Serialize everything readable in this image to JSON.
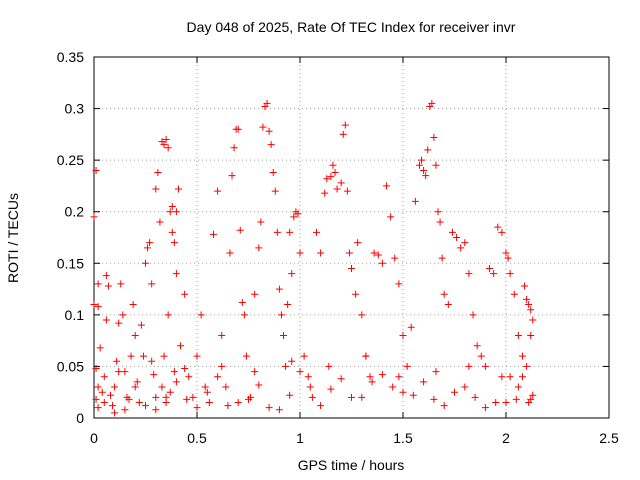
{
  "chart_data": {
    "type": "scatter",
    "title": "Day 048 of 2025, Rate Of TEC Index for receiver invr",
    "xlabel": "GPS time / hours",
    "ylabel": "ROTI / TECUs",
    "xlim": [
      0,
      2.5
    ],
    "ylim": [
      0,
      0.35
    ],
    "x_ticks": [
      0,
      0.5,
      1,
      1.5,
      2,
      2.5
    ],
    "x_tick_labels": [
      "0",
      "0.5",
      "1",
      "1.5",
      "2",
      "2.5"
    ],
    "y_ticks": [
      0,
      0.05,
      0.1,
      0.15,
      0.2,
      0.25,
      0.3,
      0.35
    ],
    "y_tick_labels": [
      "0",
      "0.05",
      "0.1",
      "0.15",
      "0.2",
      "0.25",
      "0.3",
      "0.35"
    ],
    "grid": true,
    "marker": "plus",
    "color": "#ff0000",
    "points": [
      [
        0.0,
        0.195
      ],
      [
        0.01,
        0.24
      ],
      [
        0.02,
        0.13
      ],
      [
        0.0,
        0.11
      ],
      [
        0.02,
        0.108
      ],
      [
        0.03,
        0.068
      ],
      [
        0.01,
        0.048
      ],
      [
        0.02,
        0.03
      ],
      [
        0.01,
        0.018
      ],
      [
        0.02,
        0.01
      ],
      [
        0.04,
        0.025
      ],
      [
        0.05,
        0.04
      ],
      [
        0.06,
        0.095
      ],
      [
        0.06,
        0.138
      ],
      [
        0.07,
        0.128
      ],
      [
        0.08,
        0.022
      ],
      [
        0.09,
        0.012
      ],
      [
        0.1,
        0.03
      ],
      [
        0.11,
        0.055
      ],
      [
        0.12,
        0.092
      ],
      [
        0.13,
        0.13
      ],
      [
        0.14,
        0.1
      ],
      [
        0.15,
        0.045
      ],
      [
        0.16,
        0.02
      ],
      [
        0.17,
        0.018
      ],
      [
        0.18,
        0.06
      ],
      [
        0.19,
        0.11
      ],
      [
        0.2,
        0.08
      ],
      [
        0.21,
        0.035
      ],
      [
        0.22,
        0.015
      ],
      [
        0.23,
        0.09
      ],
      [
        0.24,
        0.06
      ],
      [
        0.25,
        0.15
      ],
      [
        0.26,
        0.165
      ],
      [
        0.27,
        0.17
      ],
      [
        0.28,
        0.13
      ],
      [
        0.29,
        0.042
      ],
      [
        0.3,
        0.02
      ],
      [
        0.3,
        0.222
      ],
      [
        0.31,
        0.238
      ],
      [
        0.32,
        0.19
      ],
      [
        0.33,
        0.268
      ],
      [
        0.34,
        0.265
      ],
      [
        0.35,
        0.27
      ],
      [
        0.36,
        0.262
      ],
      [
        0.37,
        0.2
      ],
      [
        0.38,
        0.205
      ],
      [
        0.39,
        0.17
      ],
      [
        0.4,
        0.14
      ],
      [
        0.41,
        0.222
      ],
      [
        0.4,
        0.2
      ],
      [
        0.38,
        0.18
      ],
      [
        0.36,
        0.1
      ],
      [
        0.34,
        0.06
      ],
      [
        0.33,
        0.03
      ],
      [
        0.35,
        0.015
      ],
      [
        0.37,
        0.025
      ],
      [
        0.39,
        0.045
      ],
      [
        0.42,
        0.07
      ],
      [
        0.44,
        0.12
      ],
      [
        0.46,
        0.04
      ],
      [
        0.48,
        0.02
      ],
      [
        0.5,
        0.06
      ],
      [
        0.52,
        0.1
      ],
      [
        0.54,
        0.03
      ],
      [
        0.56,
        0.015
      ],
      [
        0.58,
        0.178
      ],
      [
        0.6,
        0.22
      ],
      [
        0.62,
        0.08
      ],
      [
        0.64,
        0.03
      ],
      [
        0.66,
        0.16
      ],
      [
        0.67,
        0.235
      ],
      [
        0.68,
        0.262
      ],
      [
        0.69,
        0.28
      ],
      [
        0.7,
        0.28
      ],
      [
        0.71,
        0.182
      ],
      [
        0.72,
        0.112
      ],
      [
        0.73,
        0.1
      ],
      [
        0.74,
        0.06
      ],
      [
        0.76,
        0.02
      ],
      [
        0.78,
        0.12
      ],
      [
        0.8,
        0.165
      ],
      [
        0.81,
        0.19
      ],
      [
        0.82,
        0.282
      ],
      [
        0.83,
        0.302
      ],
      [
        0.84,
        0.305
      ],
      [
        0.85,
        0.278
      ],
      [
        0.86,
        0.265
      ],
      [
        0.87,
        0.238
      ],
      [
        0.88,
        0.22
      ],
      [
        0.89,
        0.18
      ],
      [
        0.9,
        0.125
      ],
      [
        0.91,
        0.1
      ],
      [
        0.92,
        0.08
      ],
      [
        0.93,
        0.05
      ],
      [
        0.95,
        0.18
      ],
      [
        0.97,
        0.195
      ],
      [
        0.98,
        0.2
      ],
      [
        0.99,
        0.198
      ],
      [
        1.0,
        0.16
      ],
      [
        0.96,
        0.14
      ],
      [
        0.94,
        0.11
      ],
      [
        1.02,
        0.06
      ],
      [
        1.04,
        0.04
      ],
      [
        1.06,
        0.02
      ],
      [
        1.08,
        0.18
      ],
      [
        1.1,
        0.16
      ],
      [
        1.12,
        0.218
      ],
      [
        1.13,
        0.232
      ],
      [
        1.15,
        0.234
      ],
      [
        1.16,
        0.245
      ],
      [
        1.17,
        0.238
      ],
      [
        1.18,
        0.222
      ],
      [
        1.2,
        0.228
      ],
      [
        1.21,
        0.275
      ],
      [
        1.22,
        0.284
      ],
      [
        1.23,
        0.22
      ],
      [
        1.24,
        0.16
      ],
      [
        1.25,
        0.145
      ],
      [
        1.27,
        0.12
      ],
      [
        1.28,
        0.17
      ],
      [
        1.3,
        0.1
      ],
      [
        1.32,
        0.06
      ],
      [
        1.34,
        0.04
      ],
      [
        1.36,
        0.16
      ],
      [
        1.38,
        0.158
      ],
      [
        1.4,
        0.15
      ],
      [
        1.42,
        0.225
      ],
      [
        1.44,
        0.195
      ],
      [
        1.46,
        0.155
      ],
      [
        1.48,
        0.13
      ],
      [
        1.5,
        0.08
      ],
      [
        1.52,
        0.05
      ],
      [
        1.54,
        0.088
      ],
      [
        1.56,
        0.21
      ],
      [
        1.58,
        0.245
      ],
      [
        1.59,
        0.25
      ],
      [
        1.6,
        0.24
      ],
      [
        1.61,
        0.235
      ],
      [
        1.62,
        0.26
      ],
      [
        1.63,
        0.302
      ],
      [
        1.64,
        0.305
      ],
      [
        1.65,
        0.272
      ],
      [
        1.66,
        0.245
      ],
      [
        1.67,
        0.2
      ],
      [
        1.68,
        0.19
      ],
      [
        1.69,
        0.155
      ],
      [
        1.7,
        0.12
      ],
      [
        1.72,
        0.11
      ],
      [
        1.74,
        0.18
      ],
      [
        1.76,
        0.175
      ],
      [
        1.78,
        0.165
      ],
      [
        1.8,
        0.17
      ],
      [
        1.82,
        0.14
      ],
      [
        1.84,
        0.1
      ],
      [
        1.86,
        0.07
      ],
      [
        1.88,
        0.06
      ],
      [
        1.9,
        0.05
      ],
      [
        1.92,
        0.145
      ],
      [
        1.94,
        0.14
      ],
      [
        1.96,
        0.185
      ],
      [
        1.98,
        0.18
      ],
      [
        2.0,
        0.16
      ],
      [
        2.01,
        0.155
      ],
      [
        2.02,
        0.14
      ],
      [
        2.04,
        0.12
      ],
      [
        2.06,
        0.08
      ],
      [
        2.08,
        0.06
      ],
      [
        2.09,
        0.128
      ],
      [
        2.1,
        0.115
      ],
      [
        2.11,
        0.11
      ],
      [
        2.12,
        0.105
      ],
      [
        2.13,
        0.095
      ],
      [
        2.12,
        0.08
      ],
      [
        2.1,
        0.05
      ],
      [
        2.08,
        0.04
      ],
      [
        2.06,
        0.03
      ],
      [
        2.13,
        0.022
      ],
      [
        2.12,
        0.018
      ],
      [
        2.11,
        0.015
      ],
      [
        0.05,
        0.015
      ],
      [
        0.15,
        0.008
      ],
      [
        0.25,
        0.012
      ],
      [
        0.35,
        0.02
      ],
      [
        0.45,
        0.018
      ],
      [
        0.55,
        0.025
      ],
      [
        0.65,
        0.012
      ],
      [
        0.75,
        0.018
      ],
      [
        0.85,
        0.01
      ],
      [
        0.95,
        0.022
      ],
      [
        1.05,
        0.03
      ],
      [
        1.15,
        0.028
      ],
      [
        1.25,
        0.02
      ],
      [
        1.35,
        0.035
      ],
      [
        1.45,
        0.03
      ],
      [
        1.55,
        0.022
      ],
      [
        1.65,
        0.018
      ],
      [
        1.75,
        0.025
      ],
      [
        1.85,
        0.02
      ],
      [
        1.95,
        0.015
      ],
      [
        2.05,
        0.018
      ],
      [
        0.1,
        0.005
      ],
      [
        0.3,
        0.008
      ],
      [
        0.5,
        0.01
      ],
      [
        0.7,
        0.015
      ],
      [
        0.9,
        0.008
      ],
      [
        1.1,
        0.012
      ],
      [
        1.3,
        0.02
      ],
      [
        1.5,
        0.025
      ],
      [
        1.7,
        0.012
      ],
      [
        1.9,
        0.01
      ],
      [
        2.0,
        0.015
      ],
      [
        0.2,
        0.03
      ],
      [
        0.4,
        0.035
      ],
      [
        0.6,
        0.04
      ],
      [
        0.8,
        0.032
      ],
      [
        1.0,
        0.045
      ],
      [
        1.2,
        0.038
      ],
      [
        1.4,
        0.042
      ],
      [
        1.6,
        0.035
      ],
      [
        1.8,
        0.03
      ],
      [
        2.02,
        0.04
      ],
      [
        0.12,
        0.045
      ],
      [
        0.28,
        0.055
      ],
      [
        0.44,
        0.048
      ],
      [
        0.62,
        0.05
      ],
      [
        0.78,
        0.045
      ],
      [
        0.96,
        0.055
      ],
      [
        1.14,
        0.05
      ],
      [
        1.32,
        0.06
      ],
      [
        1.48,
        0.04
      ],
      [
        1.66,
        0.045
      ],
      [
        1.82,
        0.05
      ],
      [
        1.98,
        0.04
      ]
    ]
  }
}
